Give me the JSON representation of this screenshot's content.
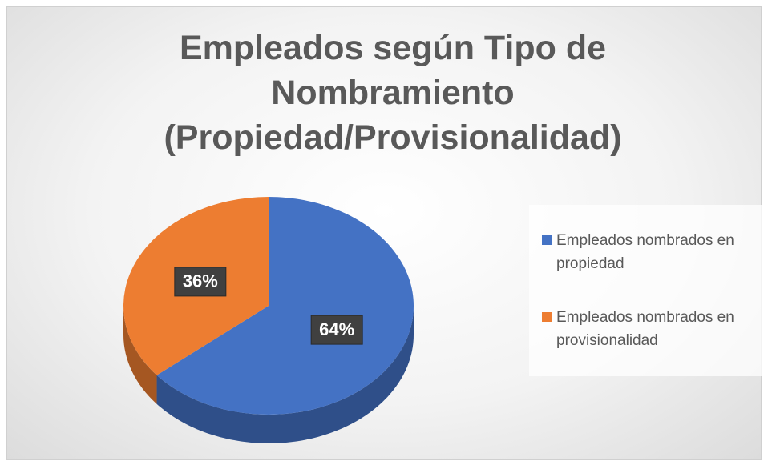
{
  "chart_data": {
    "type": "pie",
    "title": "Empleados según Tipo de Nombramiento (Propiedad/Provisionalidad)",
    "categories": [
      "Empleados nombrados en propiedad",
      "Empleados nombrados en provisionalidad"
    ],
    "values": [
      64,
      36
    ],
    "value_labels": [
      "64%",
      "36%"
    ],
    "colors": [
      "#4472c4",
      "#ed7d31"
    ],
    "legend": "right"
  }
}
